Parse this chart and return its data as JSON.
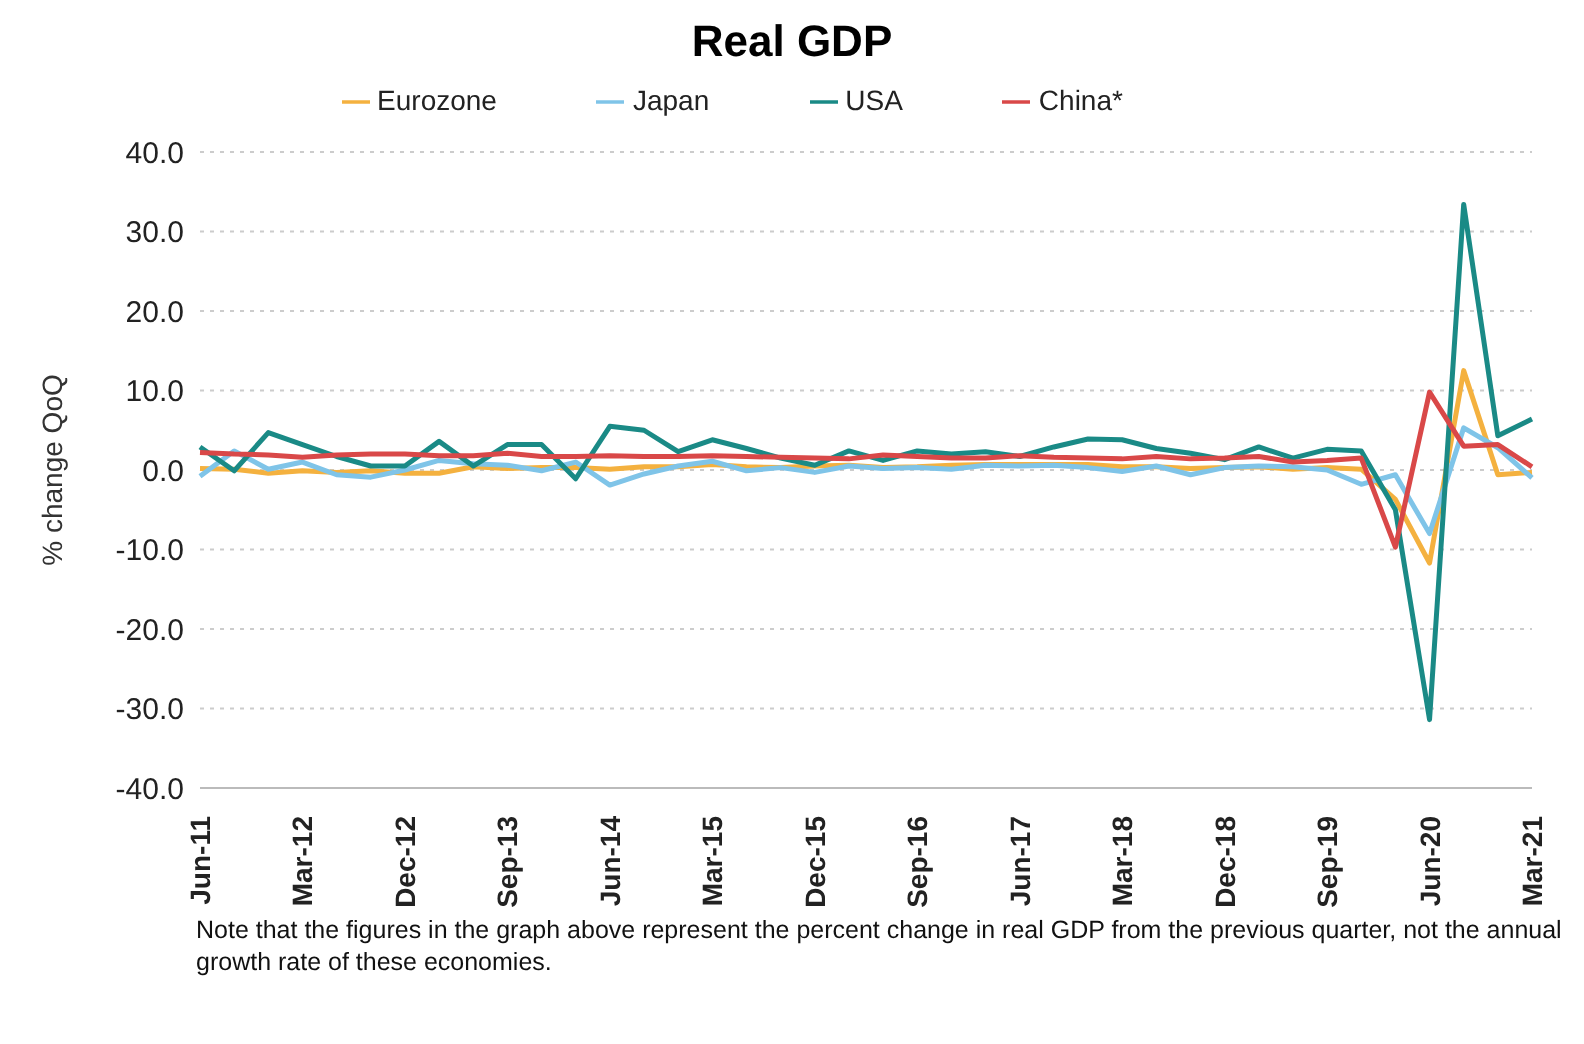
{
  "chart_data": {
    "type": "line",
    "title": "Real GDP",
    "ylabel": "% change QoQ",
    "categories": [
      "Jun-11",
      null,
      null,
      "Mar-12",
      null,
      null,
      "Dec-12",
      null,
      null,
      "Sep-13",
      null,
      null,
      "Jun-14",
      null,
      null,
      "Mar-15",
      null,
      null,
      "Dec-15",
      null,
      null,
      "Sep-16",
      null,
      null,
      "Jun-17",
      null,
      null,
      "Mar-18",
      null,
      null,
      "Dec-18",
      null,
      null,
      "Sep-19",
      null,
      null,
      "Jun-20",
      null,
      null,
      "Mar-21"
    ],
    "series": [
      {
        "name": "Eurozone",
        "color": "#f4b13f",
        "values": [
          0.2,
          0.1,
          -0.4,
          -0.1,
          -0.3,
          -0.1,
          -0.4,
          -0.4,
          0.4,
          0.2,
          0.3,
          0.3,
          0.1,
          0.4,
          0.4,
          0.7,
          0.4,
          0.3,
          0.5,
          0.6,
          0.3,
          0.4,
          0.6,
          0.7,
          0.7,
          0.7,
          0.7,
          0.4,
          0.4,
          0.2,
          0.3,
          0.4,
          0.1,
          0.3,
          0.1,
          -3.7,
          -11.7,
          12.5,
          -0.6,
          -0.3
        ]
      },
      {
        "name": "Japan",
        "color": "#7fc4e8",
        "values": [
          -0.8,
          2.4,
          0.1,
          1.0,
          -0.6,
          -0.9,
          0.0,
          1.2,
          0.8,
          0.6,
          -0.1,
          1.0,
          -1.9,
          -0.5,
          0.5,
          1.1,
          -0.1,
          0.3,
          -0.3,
          0.5,
          0.2,
          0.3,
          0.1,
          0.6,
          0.5,
          0.6,
          0.3,
          -0.2,
          0.5,
          -0.6,
          0.3,
          0.5,
          0.4,
          0.0,
          -1.8,
          -0.6,
          -8.0,
          5.3,
          2.8,
          -1.0
        ]
      },
      {
        "name": "USA",
        "color": "#1a8a86",
        "values": [
          2.9,
          -0.1,
          4.7,
          3.2,
          1.7,
          0.5,
          0.5,
          3.6,
          0.5,
          3.2,
          3.2,
          -1.1,
          5.5,
          5.0,
          2.3,
          3.8,
          2.7,
          1.5,
          0.6,
          2.4,
          1.2,
          2.4,
          2.0,
          2.3,
          1.7,
          2.9,
          3.9,
          3.8,
          2.7,
          2.1,
          1.3,
          2.9,
          1.5,
          2.6,
          2.4,
          -5.0,
          -31.4,
          33.4,
          4.3,
          6.4
        ]
      },
      {
        "name": "China*",
        "color": "#d94848",
        "values": [
          2.2,
          2.0,
          1.9,
          1.6,
          1.9,
          2.0,
          2.0,
          1.8,
          1.8,
          2.1,
          1.7,
          1.7,
          1.8,
          1.7,
          1.7,
          1.8,
          1.7,
          1.6,
          1.5,
          1.4,
          1.9,
          1.7,
          1.5,
          1.5,
          1.8,
          1.6,
          1.5,
          1.4,
          1.7,
          1.4,
          1.5,
          1.7,
          1.0,
          1.2,
          1.5,
          -9.7,
          9.8,
          3.0,
          3.2,
          0.4
        ]
      }
    ],
    "ylim": [
      -40,
      40
    ],
    "yticks": [
      {
        "value": -40,
        "label": "-40.0"
      },
      {
        "value": -30,
        "label": "-30.0"
      },
      {
        "value": -20,
        "label": "-20.0"
      },
      {
        "value": -10,
        "label": "-10.0"
      },
      {
        "value": 0,
        "label": "0.0"
      },
      {
        "value": 10,
        "label": "10.0"
      },
      {
        "value": 20,
        "label": "20.0"
      },
      {
        "value": 30,
        "label": "30.0"
      },
      {
        "value": 40,
        "label": "40.0"
      }
    ],
    "grid": "y",
    "legend": "top",
    "marker": "none",
    "line_style": "solid",
    "annotations": [
      "Note that the figures in the graph above represent the percent change in real GDP from the previous quarter, not the annual growth rate of these economies."
    ]
  }
}
